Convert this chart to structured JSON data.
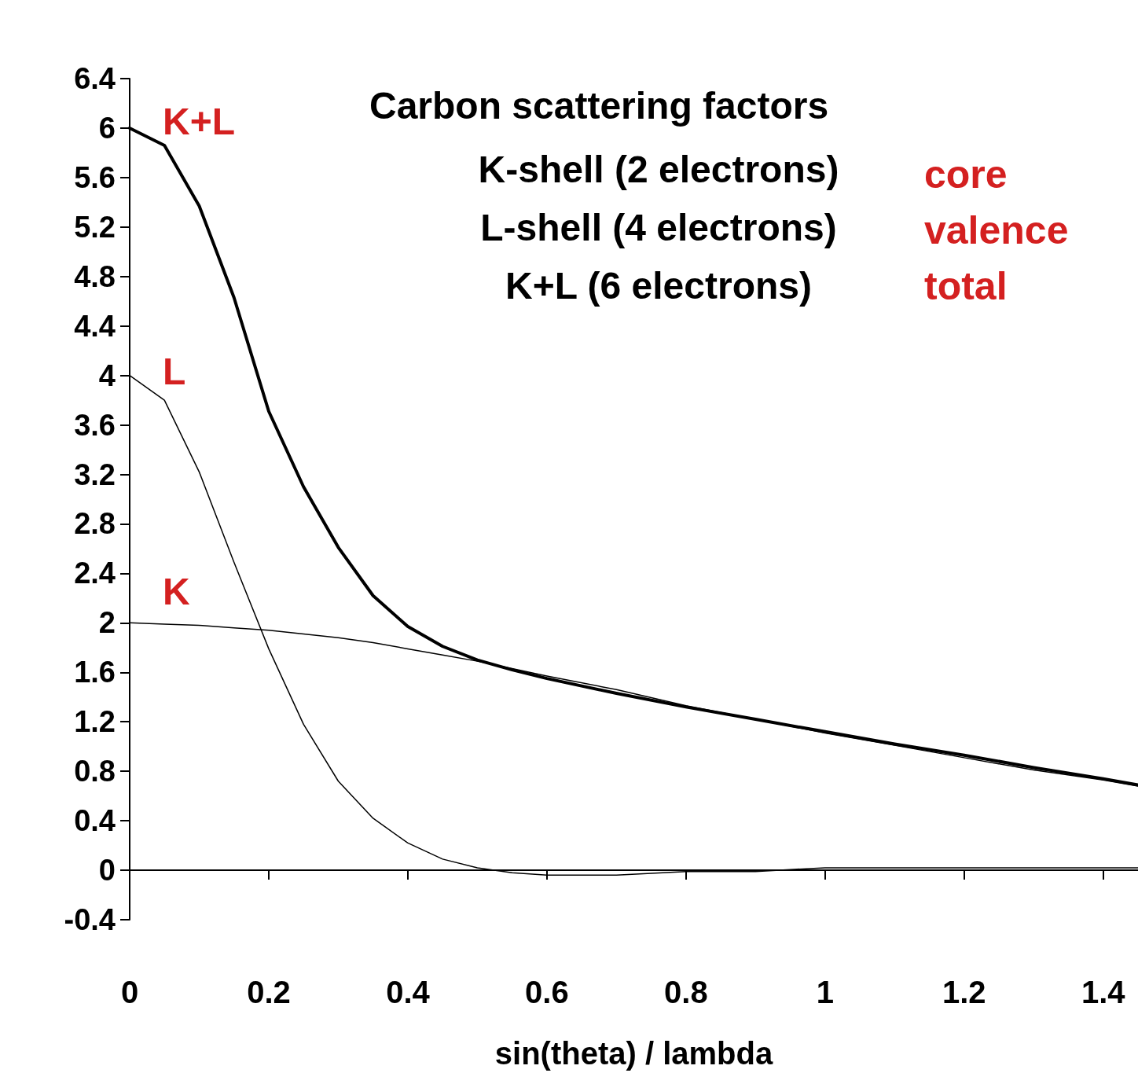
{
  "chart_data": {
    "type": "line",
    "title": "Carbon scattering factors",
    "xlabel": "sin(theta) / lambda",
    "annotations": [
      "K-shell (2 electrons)",
      "L-shell (4 electrons)",
      "K+L (6 electrons)",
      "core",
      "valence",
      "total"
    ],
    "x": [
      0,
      0.05,
      0.1,
      0.15,
      0.2,
      0.25,
      0.3,
      0.35,
      0.4,
      0.45,
      0.5,
      0.55,
      0.6,
      0.7,
      0.8,
      0.9,
      1.0,
      1.1,
      1.2,
      1.3,
      1.4,
      1.45
    ],
    "series": [
      {
        "name": "K",
        "color": "#000000",
        "values": [
          2,
          1.99,
          1.98,
          1.96,
          1.94,
          1.91,
          1.88,
          1.84,
          1.79,
          1.74,
          1.69,
          1.63,
          1.57,
          1.46,
          1.33,
          1.22,
          1.11,
          1.01,
          0.91,
          0.81,
          0.73,
          0.68
        ]
      },
      {
        "name": "L",
        "color": "#000000",
        "values": [
          4,
          3.8,
          3.22,
          2.49,
          1.79,
          1.18,
          0.72,
          0.42,
          0.22,
          0.09,
          0.02,
          -0.02,
          -0.04,
          -0.04,
          -0.01,
          -0.01,
          0.02,
          0.02,
          0.02,
          0.02,
          0.02,
          0.02
        ]
      },
      {
        "name": "K+L",
        "color": "#000000",
        "values": [
          6,
          5.86,
          5.37,
          4.63,
          3.71,
          3.1,
          2.61,
          2.22,
          1.97,
          1.81,
          1.7,
          1.62,
          1.55,
          1.43,
          1.32,
          1.22,
          1.12,
          1.02,
          0.93,
          0.83,
          0.74,
          0.69
        ]
      }
    ],
    "xlim": [
      0,
      1.45
    ],
    "xticks": [
      0,
      0.2,
      0.4,
      0.6,
      0.8,
      1,
      1.2,
      1.4
    ],
    "ylim": [
      -0.4,
      6.4
    ],
    "yticks": [
      -0.4,
      0,
      0.4,
      0.8,
      1.2,
      1.6,
      2,
      2.4,
      2.8,
      3.2,
      3.6,
      4,
      4.4,
      4.8,
      5.2,
      5.6,
      6,
      6.4
    ],
    "legend": false,
    "marker": "none",
    "line_style": "solid"
  }
}
